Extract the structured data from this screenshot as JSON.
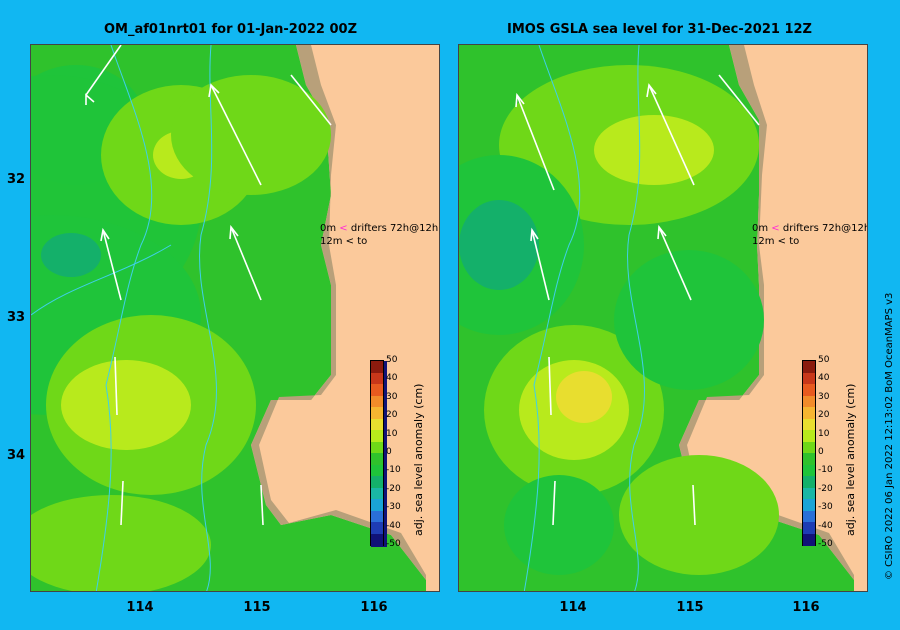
{
  "panels": [
    {
      "title": "OM_af01nrt01 for 01-Jan-2022 00Z"
    },
    {
      "title": "IMOS GSLA sea level  for 31-Dec-2021 12Z"
    }
  ],
  "x_ticks": [
    "114",
    "115",
    "116"
  ],
  "y_ticks": [
    "32",
    "33",
    "34"
  ],
  "drifter_legend": {
    "pink_label": "0m",
    "pink_text": "drifters 72h@12h",
    "black_label": "12m",
    "black_text": "to",
    "pink_color": "#ff2ad4",
    "black_color": "#000000"
  },
  "colorbar": {
    "title": "adj. sea level anomaly (cm)",
    "ticks": [
      "50",
      "40",
      "30",
      "20",
      "10",
      "0",
      "-10",
      "-20",
      "-30",
      "-40",
      "-50"
    ],
    "colors": [
      "#8b1b0e",
      "#c8371a",
      "#e85a1f",
      "#f28b2a",
      "#f6b531",
      "#e8de2f",
      "#b8ea1c",
      "#6fd818",
      "#2fc22c",
      "#1fc43a",
      "#14b06a",
      "#1ab7a5",
      "#1aa4d6",
      "#2a6fd8",
      "#1e3cb4",
      "#101278"
    ]
  },
  "credit": "© CSIRO 2022  06 Jan 2022 12:13:02 BoM OceanMAPS v3",
  "colors": {
    "land": "#fbc99b",
    "coast": "#b8a07a",
    "sea": "#2fc22c",
    "ocean_bg": "#11b7f2"
  }
}
